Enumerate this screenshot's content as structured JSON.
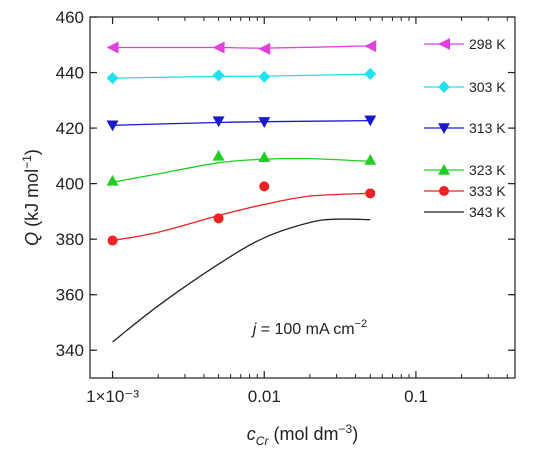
{
  "chart_data": {
    "type": "line",
    "xscale": "log",
    "xlim": [
      0.00071,
      0.45
    ],
    "ylim": [
      330,
      460
    ],
    "x_ticks": [
      0.001,
      0.01,
      0.1
    ],
    "x_tick_labels": [
      "1×10⁻³",
      "0.01",
      "0.1"
    ],
    "y_ticks": [
      340,
      360,
      380,
      400,
      420,
      440,
      460
    ],
    "y_tick_labels": [
      "340",
      "360",
      "380",
      "400",
      "420",
      "440",
      "460"
    ],
    "ylabel": {
      "symbol": "Q",
      "unit_pre": "(kJ mol",
      "unit_sup": "−1",
      "unit_post": ")"
    },
    "xlabel": {
      "symbol": "c",
      "sub": "Cr",
      "unit_pre": "(mol dm",
      "unit_sup": "−3",
      "unit_post": ")"
    },
    "annotation": {
      "symbol": "j",
      "text_pre": " = 100 mA cm",
      "text_sup": "−2",
      "x": 0.02,
      "y": 348
    },
    "grid": false,
    "legend_position": "right",
    "series": [
      {
        "name": "298 K",
        "color": "#e040e0",
        "marker": "triangle-left",
        "x": [
          0.001,
          0.005,
          0.01,
          0.05
        ],
        "y": [
          449,
          449,
          448.5,
          449.5
        ],
        "fit": [
          [
            0.001,
            449
          ],
          [
            0.005,
            449
          ],
          [
            0.01,
            448.8
          ],
          [
            0.05,
            449.6
          ]
        ]
      },
      {
        "name": "303 K",
        "color": "#22e0f0",
        "marker": "diamond",
        "x": [
          0.001,
          0.005,
          0.01,
          0.05
        ],
        "y": [
          438,
          439,
          438.5,
          439.5
        ],
        "fit": [
          [
            0.001,
            438
          ],
          [
            0.005,
            438.6
          ],
          [
            0.01,
            438.7
          ],
          [
            0.05,
            439.4
          ]
        ]
      },
      {
        "name": "313 K",
        "color": "#1a1acc",
        "marker": "triangle-down",
        "x": [
          0.001,
          0.005,
          0.01,
          0.05
        ],
        "y": [
          421,
          422.5,
          422.2,
          422.8
        ],
        "fit": [
          [
            0.001,
            421
          ],
          [
            0.005,
            422
          ],
          [
            0.01,
            422.3
          ],
          [
            0.05,
            422.7
          ]
        ]
      },
      {
        "name": "323 K",
        "color": "#22cc22",
        "marker": "triangle-up",
        "x": [
          0.001,
          0.005,
          0.01,
          0.05
        ],
        "y": [
          401,
          410,
          409.5,
          408.5
        ],
        "fit": [
          [
            0.001,
            400.5
          ],
          [
            0.002,
            403.5
          ],
          [
            0.005,
            407.5
          ],
          [
            0.01,
            408.8
          ],
          [
            0.02,
            409
          ],
          [
            0.05,
            408
          ]
        ]
      },
      {
        "name": "333 K",
        "color": "#ee2222",
        "marker": "circle",
        "x": [
          0.001,
          0.005,
          0.01,
          0.05
        ],
        "y": [
          379.5,
          387.5,
          399,
          396.5
        ],
        "fit": [
          [
            0.001,
            379.5
          ],
          [
            0.002,
            382.5
          ],
          [
            0.005,
            388.5
          ],
          [
            0.01,
            392.5
          ],
          [
            0.02,
            395.5
          ],
          [
            0.05,
            396.5
          ]
        ]
      },
      {
        "name": "343 K",
        "color": "#222222",
        "marker": "none",
        "x": [],
        "y": [],
        "fit": [
          [
            0.001,
            343
          ],
          [
            0.002,
            356
          ],
          [
            0.005,
            371
          ],
          [
            0.01,
            380.5
          ],
          [
            0.02,
            386
          ],
          [
            0.03,
            387.2
          ],
          [
            0.05,
            387
          ]
        ]
      }
    ]
  }
}
